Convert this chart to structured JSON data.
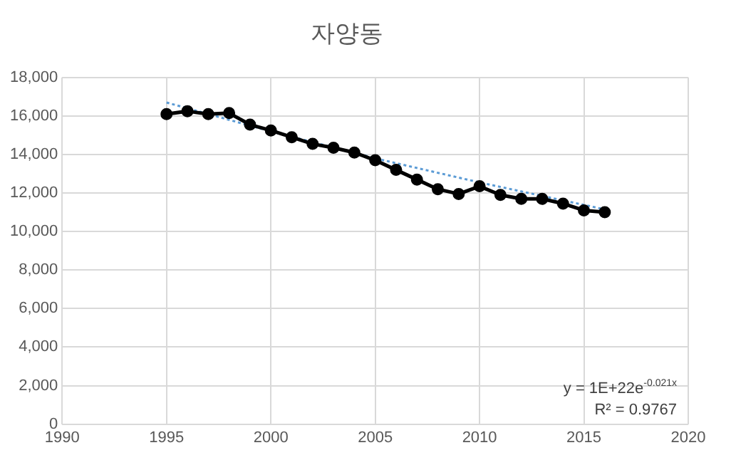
{
  "chart_data": {
    "type": "line",
    "title": "자양동",
    "xlim": [
      1990,
      2020
    ],
    "xticks": [
      1990,
      1995,
      2000,
      2005,
      2010,
      2015,
      2020
    ],
    "ylim": [
      0,
      18000
    ],
    "yticks": [
      {
        "value": 0,
        "label": "0"
      },
      {
        "value": 2000,
        "label": "2,000"
      },
      {
        "value": 4000,
        "label": "4,000"
      },
      {
        "value": 6000,
        "label": "6,000"
      },
      {
        "value": 8000,
        "label": "8,000"
      },
      {
        "value": 10000,
        "label": "10,000"
      },
      {
        "value": 12000,
        "label": "12,000"
      },
      {
        "value": 14000,
        "label": "14,000"
      },
      {
        "value": 16000,
        "label": "16,000"
      },
      {
        "value": 18000,
        "label": "18,000"
      }
    ],
    "grid": true,
    "legend": false,
    "marker": "circle",
    "series": [
      {
        "color": "#000000",
        "x": [
          1995,
          1996,
          1997,
          1998,
          1999,
          2000,
          2001,
          2002,
          2003,
          2004,
          2005,
          2006,
          2007,
          2008,
          2009,
          2010,
          2011,
          2012,
          2013,
          2014,
          2015,
          2016
        ],
        "values": [
          16100,
          16250,
          16100,
          16150,
          15550,
          15250,
          14900,
          14550,
          14350,
          14100,
          13700,
          13200,
          12700,
          12200,
          11950,
          12350,
          11900,
          11700,
          11700,
          11450,
          11100,
          11000
        ]
      },
      {
        "type": "line",
        "color": "#5b9bd5",
        "line_style": "dotted",
        "marker": "none",
        "x": [
          1995,
          2000,
          2005,
          2010,
          2016
        ],
        "values": [
          16700,
          15200,
          13800,
          12550,
          11150
        ]
      }
    ],
    "annotations": [
      "y = 1E+22e$^{-0.021x}$",
      "R² = 0.9767"
    ]
  }
}
